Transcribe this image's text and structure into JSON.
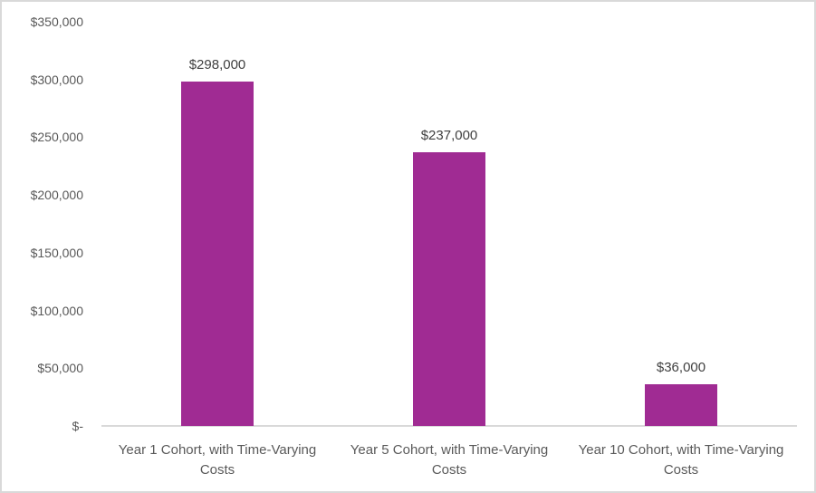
{
  "chart_data": {
    "type": "bar",
    "title": "",
    "xlabel": "",
    "ylabel": "",
    "categories": [
      "Year 1 Cohort, with Time-Varying Costs",
      "Year 5 Cohort, with Time-Varying Costs",
      "Year 10 Cohort, with Time-Varying Costs"
    ],
    "category_label_lines": [
      [
        "Year 1 Cohort, with Time-Varying",
        "Costs"
      ],
      [
        "Year 5 Cohort, with Time-Varying",
        "Costs"
      ],
      [
        "Year 10 Cohort, with Time-Varying",
        "Costs"
      ]
    ],
    "values": [
      298000,
      237000,
      36000
    ],
    "data_labels": [
      "$298,000",
      "$237,000",
      "$36,000"
    ],
    "ylim": [
      0,
      350000
    ],
    "yticks": [
      {
        "value": 350000,
        "label": "$350,000"
      },
      {
        "value": 300000,
        "label": "$300,000"
      },
      {
        "value": 250000,
        "label": "$250,000"
      },
      {
        "value": 200000,
        "label": "$200,000"
      },
      {
        "value": 150000,
        "label": "$150,000"
      },
      {
        "value": 100000,
        "label": "$100,000"
      },
      {
        "value": 50000,
        "label": "$50,000"
      },
      {
        "value": 0,
        "label": "$-"
      }
    ],
    "grid": "off",
    "legend": "none",
    "bar_color": "#A02B93",
    "axis_line_color": "#D9D9D9",
    "tick_label_color": "#595959",
    "data_label_color": "#404040",
    "frame_border_color": "#D9D9D9",
    "background_color": "#FFFFFF"
  }
}
